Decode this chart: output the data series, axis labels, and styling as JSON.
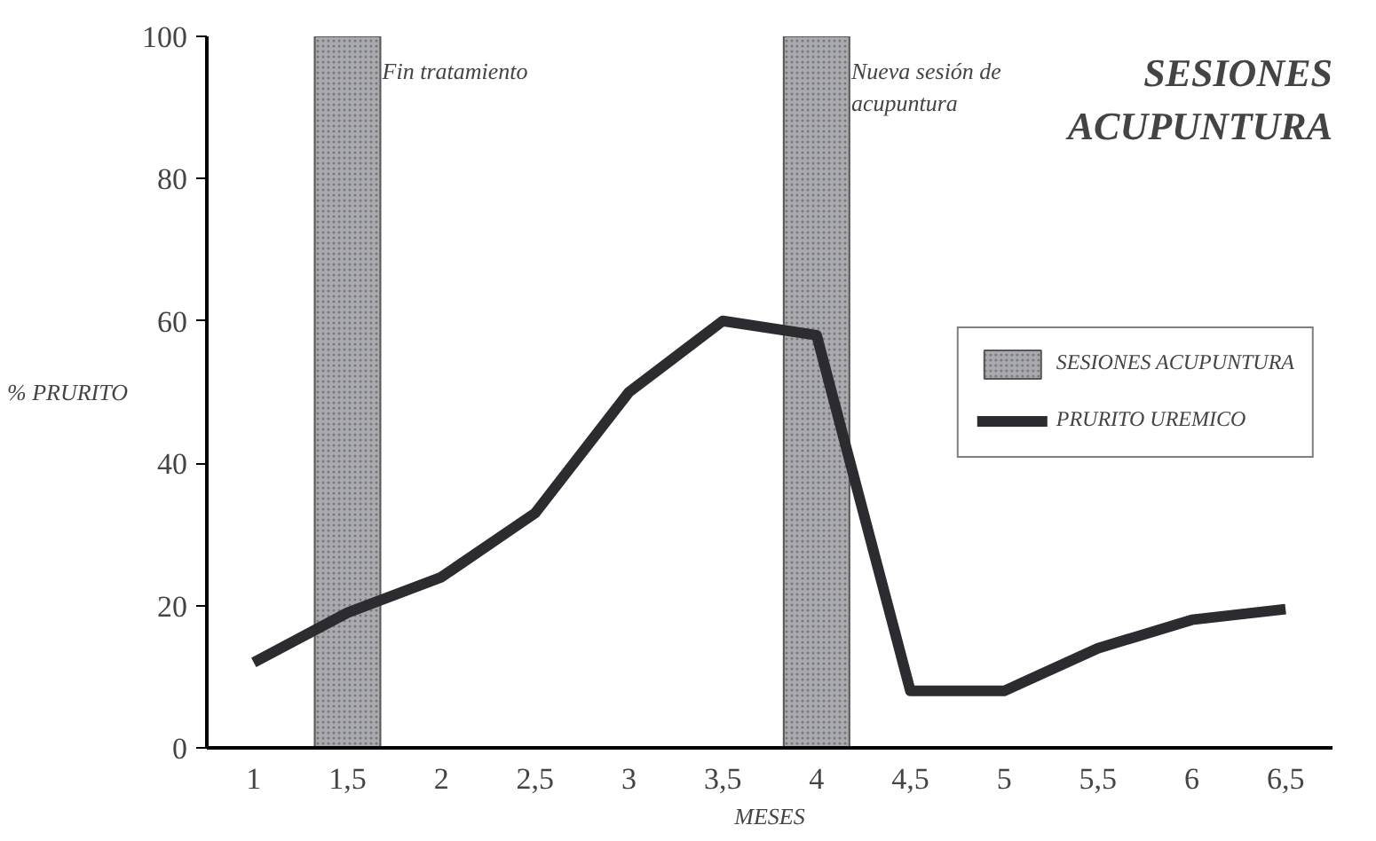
{
  "chart_data": {
    "type": "line",
    "title": "SESIONES ACUPUNTURA",
    "xlabel": "MESES",
    "ylabel": "% PRURITO",
    "categories": [
      "1",
      "1,5",
      "2",
      "2,5",
      "3",
      "3,5",
      "4",
      "4,5",
      "5",
      "5,5",
      "6",
      "6,5"
    ],
    "series": [
      {
        "name": "SESIONES ACUPUNTURA",
        "type": "bar",
        "color": "#a9a9b0",
        "values": [
          null,
          100,
          null,
          null,
          null,
          null,
          100,
          null,
          null,
          null,
          null,
          null
        ]
      },
      {
        "name": "PRURITO UREMICO",
        "color": "#2b2b30",
        "values": [
          12,
          19,
          24,
          33,
          50,
          60,
          58,
          8,
          8,
          14,
          18,
          19.5
        ]
      }
    ],
    "annotations": [
      "Fin tratamiento",
      "Nueva sesión de\nacupuntura"
    ],
    "ylim": [
      0,
      100
    ],
    "yticks": [
      0,
      20,
      40,
      60,
      80,
      100
    ],
    "grid": false,
    "legend": "right"
  }
}
